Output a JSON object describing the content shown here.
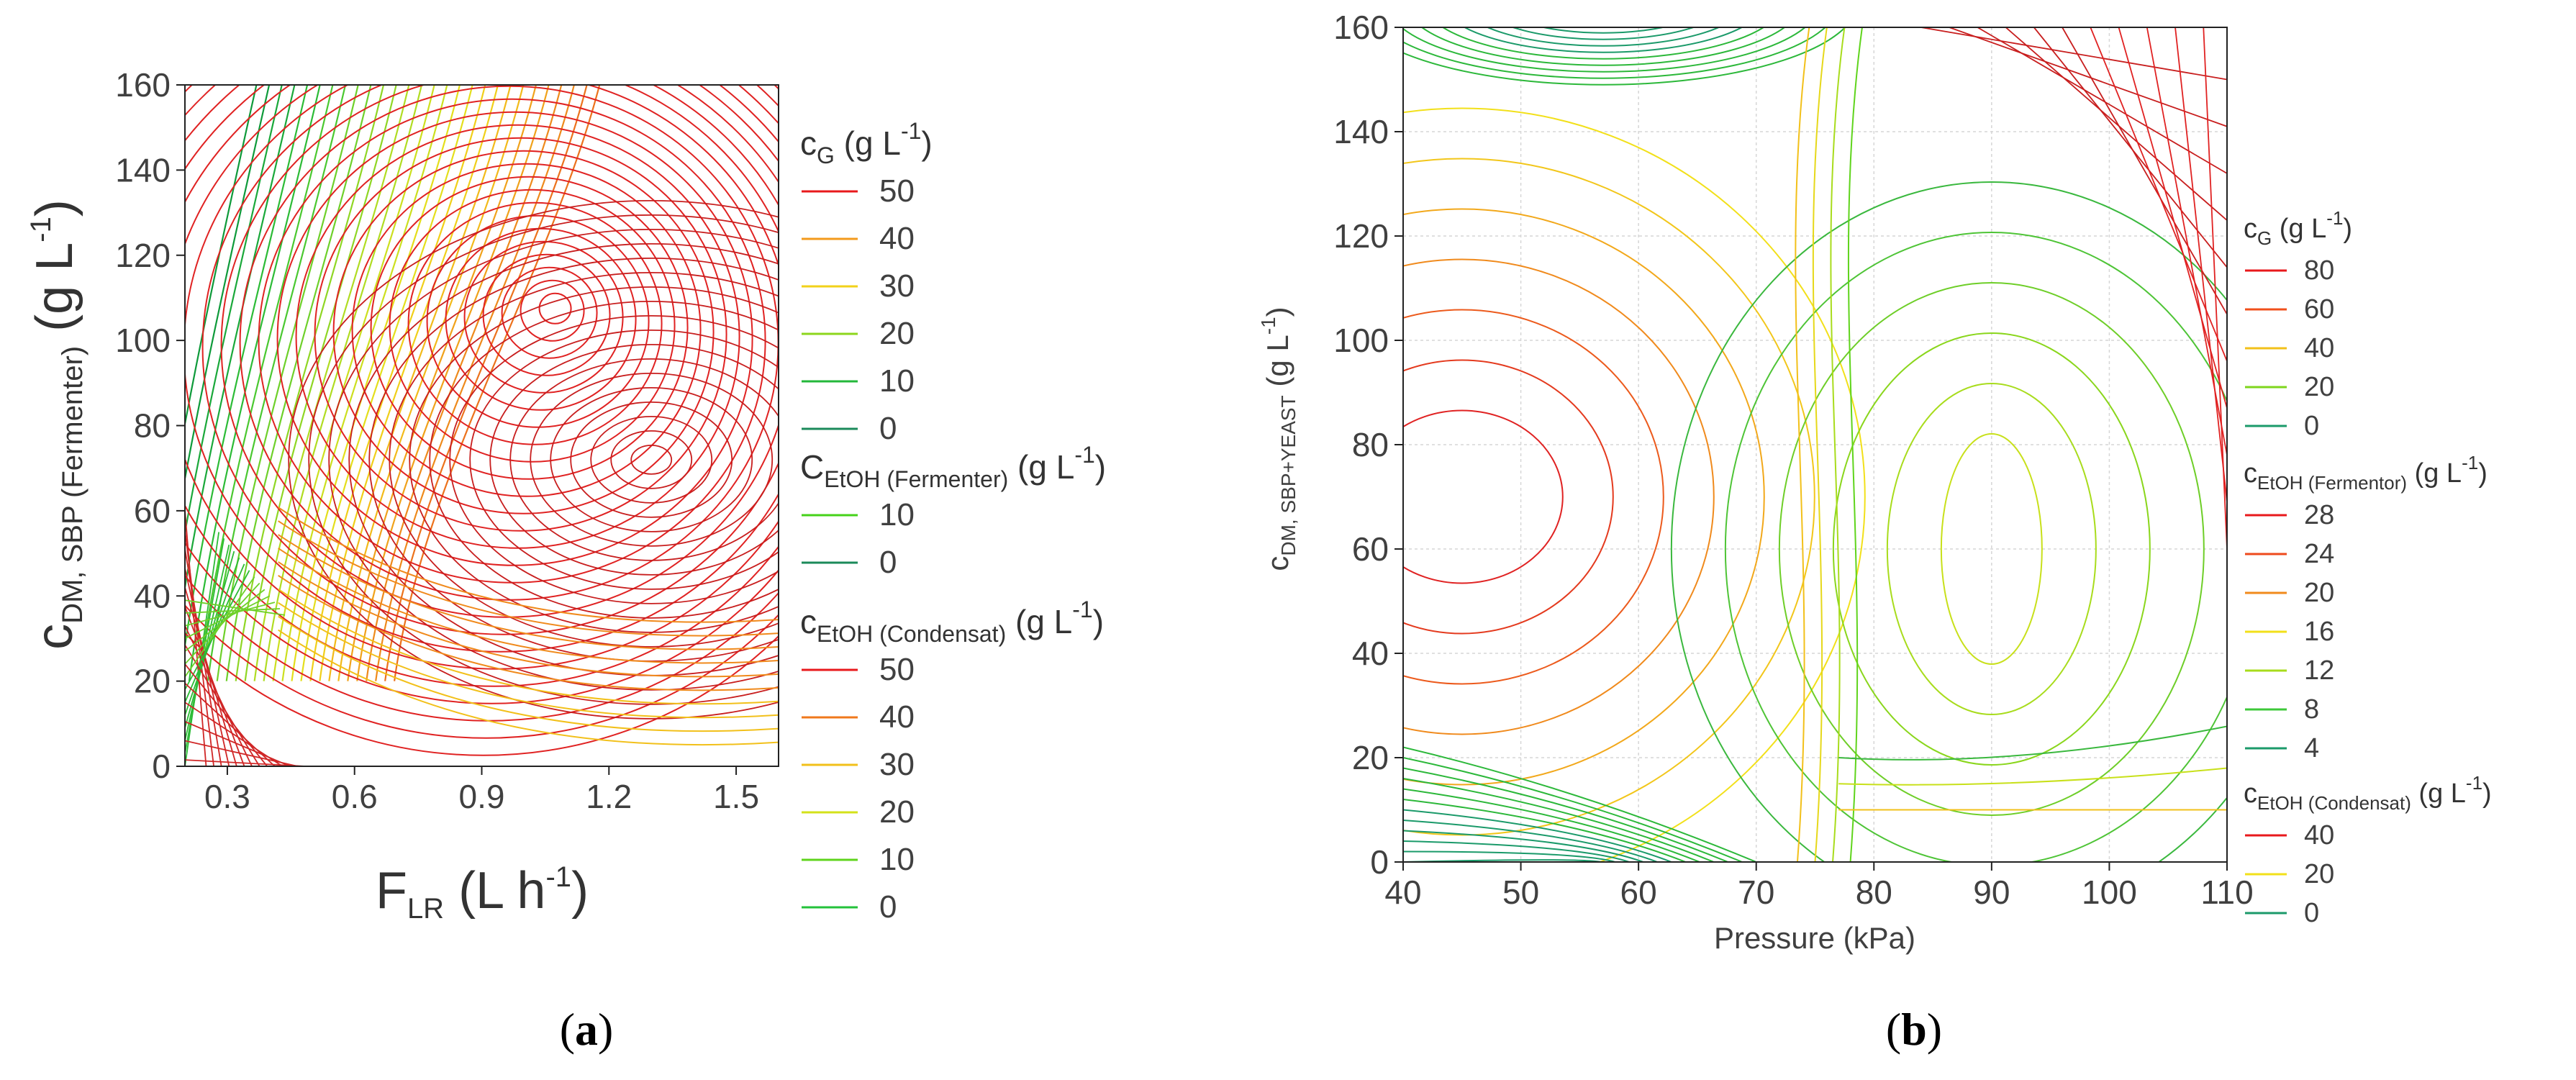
{
  "chart_data": [
    {
      "type": "contour",
      "panel_label_open": "(",
      "panel_label_letter": "a",
      "panel_label_close": ")",
      "xlabel_main": "F",
      "xlabel_sub": "LR",
      "xlabel_unit": " (L h",
      "xlabel_sup": "-1",
      "xlabel_end": ")",
      "ylabel_main": "c",
      "ylabel_sub": "DM, SBP (Fermenter)",
      "ylabel_unit": " (g L",
      "ylabel_sup": "-1",
      "ylabel_end": ")",
      "xlim": [
        0.2,
        1.6
      ],
      "ylim": [
        0,
        160
      ],
      "xticks": [
        "0.3",
        "0.6",
        "0.9",
        "1.2",
        "1.5"
      ],
      "xtick_values": [
        0.3,
        0.6,
        0.9,
        1.2,
        1.5
      ],
      "yticks": [
        "0",
        "20",
        "40",
        "60",
        "80",
        "100",
        "120",
        "140",
        "160"
      ],
      "ytick_values": [
        0,
        20,
        40,
        60,
        80,
        100,
        120,
        140,
        160
      ],
      "legend": [
        {
          "title_main": "c",
          "title_sub": "G",
          "title_unit": " (g L",
          "title_sup": "-1",
          "title_end": ")",
          "levels": [
            "50",
            "40",
            "30",
            "20",
            "10",
            "0"
          ],
          "colors": [
            "#e8191c",
            "#f39a1c",
            "#f2d21a",
            "#8dd61c",
            "#23b83a",
            "#1b8a5a"
          ]
        },
        {
          "title_main": "C",
          "title_sub": "EtOH (Fermenter)",
          "title_unit": " (g L",
          "title_sup": "-1",
          "title_end": ")",
          "levels": [
            "10",
            "0"
          ],
          "colors": [
            "#45d21a",
            "#1b8a5a"
          ]
        },
        {
          "title_main": "c",
          "title_sub": "EtOH (Condensat)",
          "title_unit": " (g L",
          "title_sup": "-1",
          "title_end": ")",
          "levels": [
            "50",
            "40",
            "30",
            "20",
            "10",
            "0"
          ],
          "colors": [
            "#e8191c",
            "#f0781c",
            "#f2c01a",
            "#d4e21a",
            "#5fd41c",
            "#23c23a"
          ]
        }
      ]
    },
    {
      "type": "contour",
      "panel_label_open": "(",
      "panel_label_letter": "b",
      "panel_label_close": ")",
      "xlabel": "Pressure (kPa)",
      "ylabel_main": "c",
      "ylabel_sub": "DM, SBP+YEAST",
      "ylabel_unit": " (g L",
      "ylabel_sup": "-1",
      "ylabel_end": ")",
      "xlim": [
        40,
        110
      ],
      "ylim": [
        0,
        160
      ],
      "grid": true,
      "xticks": [
        "40",
        "50",
        "60",
        "70",
        "80",
        "90",
        "100",
        "110"
      ],
      "xtick_values": [
        40,
        50,
        60,
        70,
        80,
        90,
        100,
        110
      ],
      "yticks": [
        "0",
        "20",
        "40",
        "60",
        "80",
        "100",
        "120",
        "140",
        "160"
      ],
      "ytick_values": [
        0,
        20,
        40,
        60,
        80,
        100,
        120,
        140,
        160
      ],
      "legend": [
        {
          "title_main": "c",
          "title_sub": "G",
          "title_unit": " (g L",
          "title_sup": "-1",
          "title_end": ")",
          "levels": [
            "80",
            "60",
            "40",
            "20",
            "0"
          ],
          "colors": [
            "#e8191c",
            "#f0501c",
            "#f2c01a",
            "#7ed61c",
            "#1b9a6a"
          ]
        },
        {
          "title_main": "c",
          "title_sub": "EtOH (Fermentor)",
          "title_unit": " (g L",
          "title_sup": "-1",
          "title_end": ")",
          "levels": [
            "28",
            "24",
            "20",
            "16",
            "12",
            "8",
            "4"
          ],
          "colors": [
            "#e8191c",
            "#ee4a1c",
            "#f08a1c",
            "#f2e01a",
            "#a8dc1c",
            "#3ec83a",
            "#1b9a6a"
          ]
        },
        {
          "title_main": "c",
          "title_sub": "EtOH (Condensat)",
          "title_unit": " (g L",
          "title_sup": "-1",
          "title_end": ")",
          "levels": [
            "40",
            "20",
            "0"
          ],
          "colors": [
            "#e8191c",
            "#f2e01a",
            "#1b9a6a"
          ]
        }
      ]
    }
  ]
}
